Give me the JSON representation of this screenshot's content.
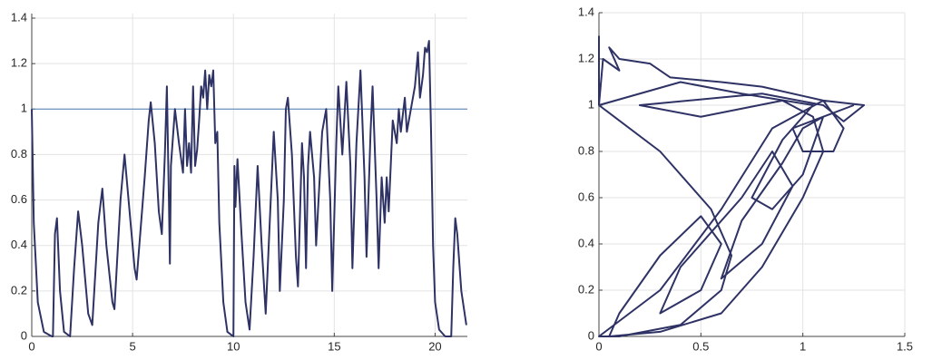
{
  "chart_data": [
    {
      "type": "line",
      "color": "#2e3264",
      "grid": true,
      "xlim": [
        0,
        21.6
      ],
      "ylim": [
        0,
        1.42
      ],
      "xticks": [
        0,
        5,
        10,
        15,
        20
      ],
      "yticks": [
        0,
        0.2,
        0.4,
        0.6,
        0.8,
        1,
        1.2,
        1.4
      ],
      "reference_lines": [
        {
          "value": 1,
          "color": "#4a7db5"
        }
      ],
      "x": [
        0,
        0.1,
        0.3,
        0.6,
        1.0,
        1.05,
        1.15,
        1.25,
        1.4,
        1.6,
        1.9,
        2.1,
        2.3,
        2.5,
        2.8,
        3.0,
        3.3,
        3.5,
        3.7,
        4.0,
        4.1,
        4.4,
        4.6,
        4.8,
        5.1,
        5.2,
        5.6,
        5.8,
        5.9,
        6.1,
        6.3,
        6.45,
        6.6,
        6.7,
        6.8,
        6.85,
        6.9,
        7.1,
        7.3,
        7.5,
        7.6,
        7.7,
        7.8,
        7.9,
        8.0,
        8.1,
        8.2,
        8.3,
        8.4,
        8.5,
        8.6,
        8.7,
        8.8,
        8.9,
        9.0,
        9.1,
        9.2,
        9.3,
        9.5,
        9.7,
        10.0,
        10.05,
        10.1,
        10.2,
        10.4,
        10.6,
        10.8,
        11.0,
        11.2,
        11.4,
        11.6,
        11.8,
        12.0,
        12.2,
        12.3,
        12.5,
        12.6,
        12.7,
        12.9,
        13.1,
        13.2,
        13.4,
        13.5,
        13.6,
        13.7,
        13.8,
        14.0,
        14.1,
        14.4,
        14.6,
        14.8,
        14.9,
        15.1,
        15.2,
        15.4,
        15.6,
        15.8,
        15.9,
        16.1,
        16.3,
        16.5,
        16.6,
        16.8,
        16.9,
        17.1,
        17.2,
        17.35,
        17.5,
        17.6,
        17.7,
        17.9,
        18.1,
        18.2,
        18.3,
        18.5,
        18.6,
        18.8,
        19.0,
        19.15,
        19.25,
        19.4,
        19.5,
        19.6,
        19.7,
        19.8,
        19.9,
        20.0,
        20.2,
        20.5,
        20.8,
        20.9,
        21.0,
        21.1,
        21.3,
        21.55
      ],
      "values": [
        1.0,
        0.5,
        0.15,
        0.02,
        0,
        0,
        0.45,
        0.52,
        0.2,
        0.02,
        0,
        0.3,
        0.55,
        0.4,
        0.1,
        0.05,
        0.5,
        0.65,
        0.4,
        0.15,
        0.12,
        0.6,
        0.8,
        0.6,
        0.3,
        0.25,
        0.7,
        0.95,
        1.03,
        0.85,
        0.55,
        0.45,
        0.8,
        1.1,
        0.6,
        0.32,
        0.75,
        1.0,
        0.85,
        0.72,
        1.0,
        0.75,
        0.85,
        0.72,
        1.1,
        0.75,
        0.82,
        0.95,
        1.1,
        1.05,
        1.17,
        1.0,
        1.15,
        1.1,
        1.17,
        0.85,
        0.9,
        0.5,
        0.15,
        0.02,
        0,
        0.75,
        0.57,
        0.78,
        0.45,
        0.15,
        0.03,
        0.35,
        0.75,
        0.4,
        0.1,
        0.5,
        0.9,
        0.6,
        0.2,
        0.6,
        1.0,
        1.05,
        0.8,
        0.35,
        0.22,
        0.85,
        0.7,
        0.3,
        0.75,
        0.9,
        0.7,
        0.4,
        0.9,
        1.0,
        0.6,
        0.2,
        0.85,
        1.1,
        0.8,
        1.12,
        0.75,
        0.3,
        0.85,
        1.17,
        0.7,
        0.35,
        0.9,
        1.1,
        0.6,
        0.3,
        0.7,
        0.5,
        0.7,
        0.55,
        0.95,
        0.85,
        1.0,
        0.9,
        1.05,
        0.9,
        1.0,
        1.1,
        1.25,
        1.05,
        1.15,
        1.27,
        1.25,
        1.3,
        0.9,
        0.4,
        0.15,
        0.03,
        0,
        0,
        0.3,
        0.52,
        0.45,
        0.2,
        0.05
      ]
    },
    {
      "type": "line",
      "color": "#2e3264",
      "grid": true,
      "xlim": [
        0,
        1.5
      ],
      "ylim": [
        0,
        1.4
      ],
      "xticks": [
        0,
        0.5,
        1,
        1.5
      ],
      "yticks": [
        0,
        0.2,
        0.4,
        0.6,
        0.8,
        1,
        1.2,
        1.4
      ],
      "x": [
        0,
        0,
        0.02,
        0.1,
        0.05,
        0.1,
        0.25,
        0.35,
        0.6,
        0.8,
        1.1,
        1.3,
        1.2,
        1.1,
        0.8,
        0.2,
        0.5,
        0.9,
        1.05,
        1.1,
        1.0,
        0.8,
        0.6,
        0.3,
        0.05,
        0.1,
        0.3,
        0.5,
        0.6,
        0.5,
        0.3,
        0.4,
        0.7,
        0.85,
        0.95,
        0.8,
        0.6,
        0.7,
        0.9,
        1.0,
        1.1,
        1.0,
        0.85,
        0.75,
        0.9,
        1.05,
        0.7,
        0.4,
        0,
        0.3,
        0.55,
        0.65,
        0.6,
        0.4,
        0.1,
        0,
        0.3,
        0.6,
        0.85,
        1.1,
        1.2,
        1.15,
        1.0,
        0.95,
        1.25
      ],
      "values": [
        1.3,
        1.0,
        1.2,
        1.15,
        1.25,
        1.2,
        1.18,
        1.12,
        1.1,
        1.08,
        1.02,
        1.0,
        0.93,
        1.0,
        1.05,
        1.0,
        0.95,
        1.02,
        0.95,
        0.8,
        0.6,
        0.3,
        0.1,
        0.02,
        0,
        0.1,
        0.35,
        0.52,
        0.4,
        0.2,
        0.1,
        0.3,
        0.6,
        0.8,
        0.65,
        0.4,
        0.25,
        0.5,
        0.75,
        0.9,
        0.95,
        0.7,
        0.55,
        0.6,
        0.85,
        1.0,
        1.05,
        1.1,
        1.0,
        0.8,
        0.55,
        0.35,
        0.2,
        0.05,
        0,
        0,
        0.2,
        0.55,
        0.9,
        1.02,
        0.9,
        0.8,
        0.8,
        0.9,
        1.0
      ]
    }
  ]
}
